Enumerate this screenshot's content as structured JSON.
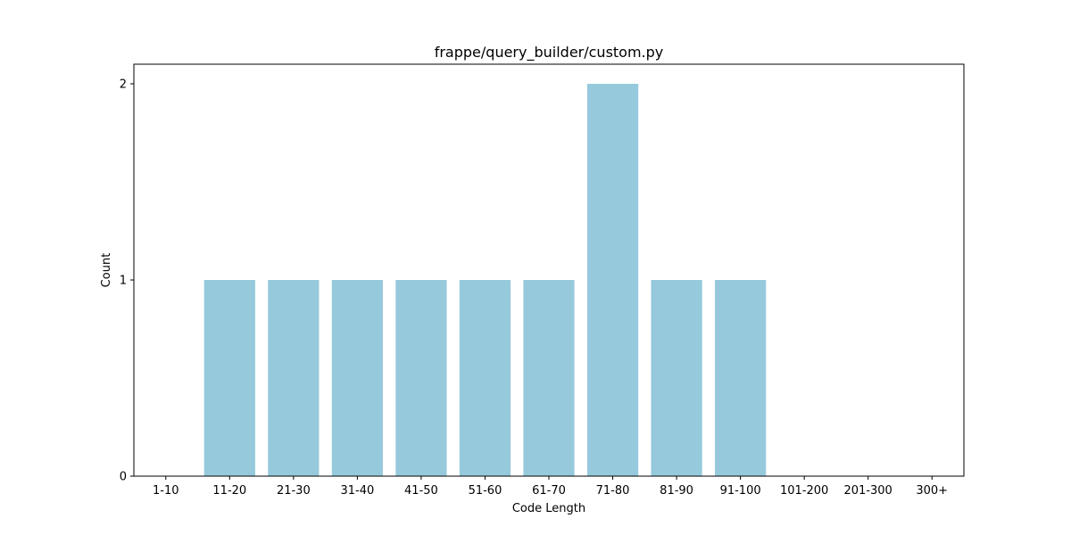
{
  "chart_data": {
    "type": "bar",
    "title": "frappe/query_builder/custom.py",
    "xlabel": "Code Length",
    "ylabel": "Count",
    "categories": [
      "1-10",
      "11-20",
      "21-30",
      "31-40",
      "41-50",
      "51-60",
      "61-70",
      "71-80",
      "81-90",
      "91-100",
      "101-200",
      "201-300",
      "300+"
    ],
    "values": [
      0,
      1,
      1,
      1,
      1,
      1,
      1,
      2,
      1,
      1,
      0,
      0,
      0
    ],
    "yticks": [
      0,
      1,
      2
    ],
    "ylim": [
      0,
      2.1
    ],
    "grid": false,
    "bar_color": "#96c9dc"
  }
}
